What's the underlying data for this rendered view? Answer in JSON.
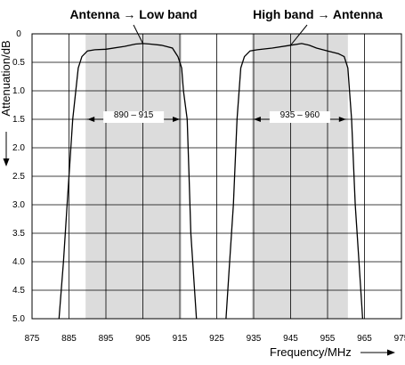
{
  "chart_data": {
    "type": "line",
    "titles": [
      "Antenna → Low band",
      "High band → Antenna"
    ],
    "xlabel": "Frequency/MHz",
    "ylabel": "Attenuation/dB",
    "xlim": [
      875,
      975
    ],
    "ylim": [
      0,
      5.0
    ],
    "y_inverted": true,
    "grid": true,
    "x_ticks": [
      875,
      885,
      895,
      905,
      915,
      925,
      935,
      945,
      955,
      965,
      975
    ],
    "y_ticks": [
      "0",
      "0.5",
      "1.0",
      "1.5",
      "2.0",
      "2.5",
      "3.0",
      "3.5",
      "4.0",
      "4.5",
      "5.0"
    ],
    "shaded_bands": [
      {
        "x": [
          889.5,
          915.5
        ],
        "label": "890 – 915"
      },
      {
        "x": [
          934.5,
          960.5
        ],
        "label": "935 – 960"
      }
    ],
    "series": [
      {
        "x": [
          882.3,
          883.5,
          884.5,
          886.0,
          887.5,
          888.5,
          890.0,
          892.0,
          895.0,
          900.0,
          903.0,
          905.0,
          907.0,
          910.0,
          913.0,
          914.0,
          914.5,
          915.5,
          916.0,
          917.0,
          917.5,
          918.0,
          919.5
        ],
        "values": [
          5.0,
          4.0,
          3.0,
          1.5,
          0.6,
          0.4,
          0.3,
          0.28,
          0.27,
          0.22,
          0.18,
          0.17,
          0.18,
          0.2,
          0.25,
          0.35,
          0.4,
          0.6,
          1.0,
          1.5,
          2.5,
          3.5,
          5.0
        ]
      },
      {
        "x": [
          927.5,
          928.5,
          929.5,
          930.5,
          931.5,
          932.5,
          934.0,
          936.0,
          940.0,
          945.0,
          948.0,
          950.0,
          952.0,
          955.0,
          958.0,
          959.5,
          960.5,
          961.5,
          962.5,
          963.5,
          964.5
        ],
        "values": [
          5.0,
          4.0,
          3.0,
          1.5,
          0.6,
          0.4,
          0.3,
          0.28,
          0.25,
          0.2,
          0.17,
          0.2,
          0.25,
          0.3,
          0.35,
          0.4,
          0.6,
          1.5,
          3.0,
          4.0,
          5.0
        ]
      }
    ]
  }
}
